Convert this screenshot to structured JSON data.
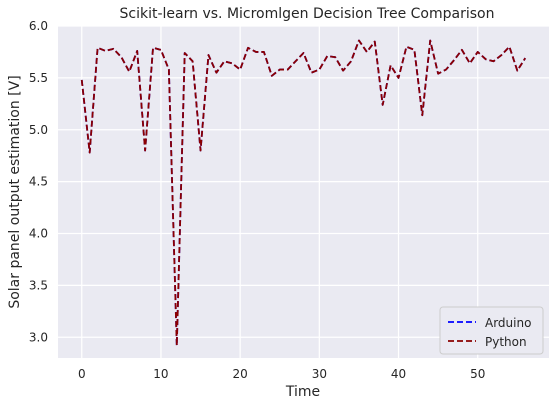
{
  "chart_data": {
    "type": "line",
    "title": "Scikit-learn vs. Micromlgen Decision Tree Comparison",
    "xlabel": "Time",
    "ylabel": "Solar panel output estimation [V]",
    "xlim": [
      -3,
      59
    ],
    "ylim": [
      2.8,
      6.0
    ],
    "xticks": [
      0,
      10,
      20,
      30,
      40,
      50
    ],
    "yticks": [
      3.0,
      3.5,
      4.0,
      4.5,
      5.0,
      5.5,
      6.0
    ],
    "ytick_labels": [
      "3.0",
      "3.5",
      "4.0",
      "4.5",
      "5.0",
      "5.5",
      "6.0"
    ],
    "grid": true,
    "legend_position": "bottom-right",
    "background": "#eaeaf2",
    "series": [
      {
        "name": "Arduino",
        "color": "#0000ff",
        "style": "dashed",
        "x": [
          0,
          1,
          2,
          3,
          4,
          5,
          6,
          7,
          8,
          9,
          10,
          11,
          12,
          13,
          14,
          15,
          16,
          17,
          18,
          19,
          20,
          21,
          22,
          23,
          24,
          25,
          26,
          27,
          28,
          29,
          30,
          31,
          32,
          33,
          34,
          35,
          36,
          37,
          38,
          39,
          40,
          41,
          42,
          43,
          44,
          45,
          46,
          47,
          48,
          49,
          50,
          51,
          52,
          53,
          54,
          55,
          56
        ],
        "y": [
          5.48,
          4.78,
          5.79,
          5.76,
          5.78,
          5.7,
          5.56,
          5.76,
          4.8,
          5.79,
          5.77,
          5.58,
          2.92,
          5.74,
          5.66,
          4.8,
          5.72,
          5.55,
          5.66,
          5.64,
          5.58,
          5.79,
          5.75,
          5.75,
          5.52,
          5.58,
          5.58,
          5.66,
          5.74,
          5.55,
          5.58,
          5.71,
          5.7,
          5.57,
          5.66,
          5.86,
          5.75,
          5.85,
          5.24,
          5.62,
          5.5,
          5.8,
          5.77,
          5.14,
          5.86,
          5.54,
          5.58,
          5.67,
          5.77,
          5.64,
          5.75,
          5.68,
          5.66,
          5.72,
          5.8,
          5.57,
          5.69
        ]
      },
      {
        "name": "Python",
        "color": "#8b0000",
        "style": "dashed",
        "x": [
          0,
          1,
          2,
          3,
          4,
          5,
          6,
          7,
          8,
          9,
          10,
          11,
          12,
          13,
          14,
          15,
          16,
          17,
          18,
          19,
          20,
          21,
          22,
          23,
          24,
          25,
          26,
          27,
          28,
          29,
          30,
          31,
          32,
          33,
          34,
          35,
          36,
          37,
          38,
          39,
          40,
          41,
          42,
          43,
          44,
          45,
          46,
          47,
          48,
          49,
          50,
          51,
          52,
          53,
          54,
          55,
          56
        ],
        "y": [
          5.48,
          4.78,
          5.79,
          5.76,
          5.78,
          5.7,
          5.56,
          5.76,
          4.8,
          5.79,
          5.77,
          5.58,
          2.92,
          5.74,
          5.66,
          4.8,
          5.72,
          5.55,
          5.66,
          5.64,
          5.58,
          5.79,
          5.75,
          5.75,
          5.52,
          5.58,
          5.58,
          5.66,
          5.74,
          5.55,
          5.58,
          5.71,
          5.7,
          5.57,
          5.66,
          5.86,
          5.75,
          5.85,
          5.24,
          5.62,
          5.5,
          5.8,
          5.77,
          5.14,
          5.86,
          5.54,
          5.58,
          5.67,
          5.77,
          5.64,
          5.75,
          5.68,
          5.66,
          5.72,
          5.8,
          5.57,
          5.69
        ]
      }
    ]
  }
}
